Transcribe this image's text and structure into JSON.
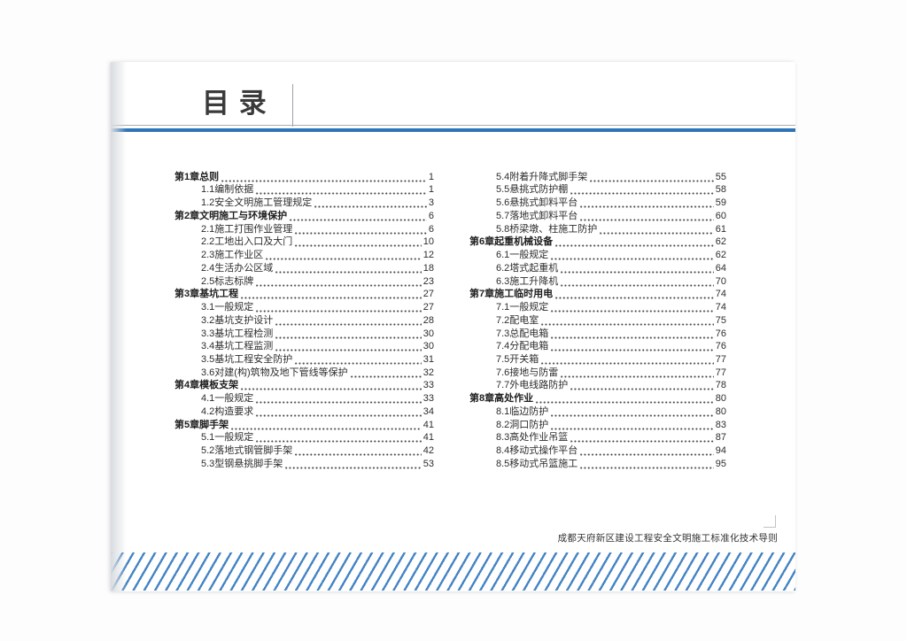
{
  "header": {
    "title": "目 录"
  },
  "toc": {
    "columns": [
      {
        "entries": [
          {
            "label": "第1章总则",
            "page": "1",
            "level": "chapter"
          },
          {
            "label": "1.1编制依据",
            "page": "1",
            "level": "section"
          },
          {
            "label": "1.2安全文明施工管理规定",
            "page": "3",
            "level": "section"
          },
          {
            "label": "第2章文明施工与环境保护",
            "page": "6",
            "level": "chapter"
          },
          {
            "label": "2.1施工打围作业管理",
            "page": "6",
            "level": "section"
          },
          {
            "label": "2.2工地出入口及大门",
            "page": "10",
            "level": "section"
          },
          {
            "label": "2.3施工作业区",
            "page": "12",
            "level": "section"
          },
          {
            "label": "2.4生活办公区域",
            "page": "18",
            "level": "section"
          },
          {
            "label": "2.5标志标牌",
            "page": "23",
            "level": "section"
          },
          {
            "label": "第3章基坑工程",
            "page": "27",
            "level": "chapter"
          },
          {
            "label": "3.1一般规定",
            "page": "27",
            "level": "section"
          },
          {
            "label": "3.2基坑支护设计",
            "page": "28",
            "level": "section"
          },
          {
            "label": "3.3基坑工程检测",
            "page": "30",
            "level": "section"
          },
          {
            "label": "3.4基坑工程监测",
            "page": "30",
            "level": "section"
          },
          {
            "label": "3.5基坑工程安全防护",
            "page": "31",
            "level": "section"
          },
          {
            "label": "3.6对建(构)筑物及地下管线等保护",
            "page": "32",
            "level": "section"
          },
          {
            "label": "第4章模板支架",
            "page": "33",
            "level": "chapter"
          },
          {
            "label": "4.1一般规定",
            "page": "33",
            "level": "section"
          },
          {
            "label": "4.2构造要求",
            "page": "34",
            "level": "section"
          },
          {
            "label": "第5章脚手架",
            "page": "41",
            "level": "chapter"
          },
          {
            "label": "5.1一般规定",
            "page": "41",
            "level": "section"
          },
          {
            "label": "5.2落地式钢管脚手架",
            "page": "42",
            "level": "section"
          },
          {
            "label": "5.3型钢悬挑脚手架",
            "page": "53",
            "level": "section"
          }
        ]
      },
      {
        "entries": [
          {
            "label": "5.4附着升降式脚手架",
            "page": "55",
            "level": "section"
          },
          {
            "label": "5.5悬挑式防护棚",
            "page": "58",
            "level": "section"
          },
          {
            "label": "5.6悬挑式卸料平台",
            "page": "59",
            "level": "section"
          },
          {
            "label": "5.7落地式卸料平台",
            "page": "60",
            "level": "section"
          },
          {
            "label": "5.8桥梁墩、柱施工防护",
            "page": "61",
            "level": "section"
          },
          {
            "label": "第6章起重机械设备",
            "page": "62",
            "level": "chapter"
          },
          {
            "label": "6.1一般规定",
            "page": "62",
            "level": "section"
          },
          {
            "label": "6.2塔式起重机",
            "page": "64",
            "level": "section"
          },
          {
            "label": "6.3施工升降机",
            "page": "70",
            "level": "section"
          },
          {
            "label": "第7章施工临时用电",
            "page": "74",
            "level": "chapter"
          },
          {
            "label": "7.1一般规定",
            "page": "74",
            "level": "section"
          },
          {
            "label": "7.2配电室",
            "page": "75",
            "level": "section"
          },
          {
            "label": "7.3总配电箱",
            "page": "76",
            "level": "section"
          },
          {
            "label": "7.4分配电箱",
            "page": "76",
            "level": "section"
          },
          {
            "label": "7.5开关箱",
            "page": "77",
            "level": "section"
          },
          {
            "label": "7.6接地与防雷",
            "page": "77",
            "level": "section"
          },
          {
            "label": "7.7外电线路防护",
            "page": "78",
            "level": "section"
          },
          {
            "label": "第8章高处作业",
            "page": "80",
            "level": "chapter"
          },
          {
            "label": "8.1临边防护",
            "page": "80",
            "level": "section"
          },
          {
            "label": "8.2洞口防护",
            "page": "83",
            "level": "section"
          },
          {
            "label": "8.3高处作业吊篮",
            "page": "87",
            "level": "section"
          },
          {
            "label": "8.4移动式操作平台",
            "page": "94",
            "level": "section"
          },
          {
            "label": "8.5移动式吊篮施工",
            "page": "95",
            "level": "section"
          }
        ]
      }
    ]
  },
  "footer": {
    "text": "成都天府新区建设工程安全文明施工标准化技术导则"
  },
  "colors": {
    "accent_blue": "#2d74b8",
    "stripe_blue": "#4584c4",
    "rule_gray": "#a9adb2"
  }
}
